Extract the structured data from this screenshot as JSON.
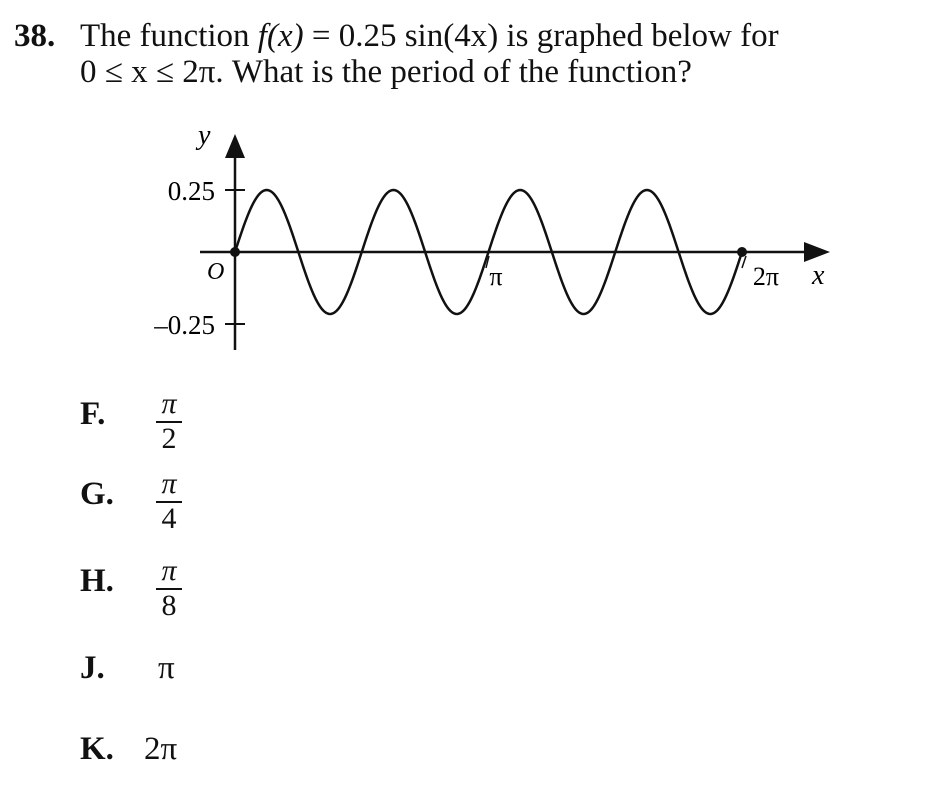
{
  "question": {
    "number": "38.",
    "line1_pre": "The function ",
    "line1_func": "f(x)",
    "line1_post": " = 0.25 sin(4x) is graphed below for",
    "line2": "0 ≤ x ≤ 2π. What is the period of the function?"
  },
  "graph": {
    "y_axis_label": "y",
    "x_axis_label": "x",
    "origin_label": "O",
    "y_tick_top": "0.25",
    "y_tick_bottom": "–0.25",
    "x_tick_pi": "π",
    "x_tick_2pi": "2π"
  },
  "chart_data": {
    "type": "line",
    "function": "0.25 sin(4x)",
    "amplitude": 0.25,
    "frequency": 4,
    "x_range": [
      0,
      6.283185307
    ],
    "ylim": [
      -0.25,
      0.25
    ],
    "x_ticks": [
      "π",
      "2π"
    ],
    "y_ticks": [
      "0.25",
      "–0.25"
    ],
    "marked_points": [
      [
        0,
        0
      ],
      [
        6.283185307,
        0
      ]
    ]
  },
  "choices": [
    {
      "letter": "F.",
      "num": "π",
      "den": "2"
    },
    {
      "letter": "G.",
      "num": "π",
      "den": "4"
    },
    {
      "letter": "H.",
      "num": "π",
      "den": "8"
    },
    {
      "letter": "J.",
      "text": "π"
    },
    {
      "letter": "K.",
      "text": "2π"
    }
  ]
}
